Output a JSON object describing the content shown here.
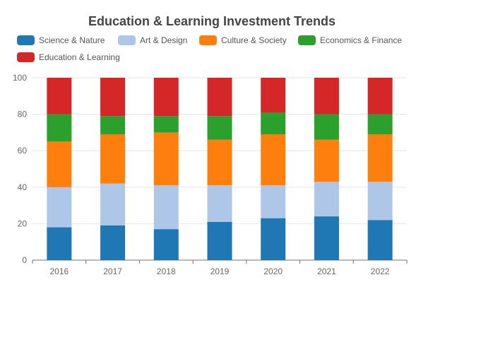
{
  "chart_data": {
    "type": "bar",
    "stacked": true,
    "title": "Education & Learning Investment Trends",
    "xlabel": "",
    "ylabel": "",
    "categories": [
      "2016",
      "2017",
      "2018",
      "2019",
      "2020",
      "2021",
      "2022"
    ],
    "ylim": [
      0,
      100
    ],
    "yticks": [
      0,
      20,
      40,
      60,
      80,
      100
    ],
    "grid": true,
    "legend_position": "top",
    "series": [
      {
        "name": "Science & Nature",
        "color": "#1f77b4",
        "values": [
          18,
          19,
          17,
          21,
          23,
          24,
          22
        ]
      },
      {
        "name": "Art & Design",
        "color": "#aec7e8",
        "values": [
          22,
          23,
          24,
          20,
          18,
          19,
          21
        ]
      },
      {
        "name": "Culture & Society",
        "color": "#ff7f0e",
        "values": [
          25,
          27,
          29,
          25,
          28,
          23,
          26
        ]
      },
      {
        "name": "Economics & Finance",
        "color": "#2ca02c",
        "values": [
          15,
          10,
          9,
          13,
          12,
          14,
          11
        ]
      },
      {
        "name": "Education & Learning",
        "color": "#d62728",
        "values": [
          20,
          21,
          21,
          21,
          19,
          20,
          20
        ]
      }
    ]
  }
}
